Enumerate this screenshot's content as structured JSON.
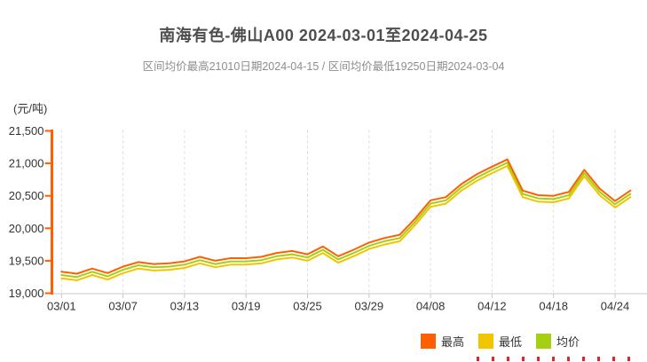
{
  "header": {
    "title": "南海有色-佛山A00 2024-03-01至2024-04-25",
    "subtitle": "区间均价最高21010日期2024-04-15 / 区间均价最低19250日期2024-03-04"
  },
  "y_axis": {
    "unit_label": "(元/吨)",
    "ticks": [
      "21,500",
      "21,000",
      "20,500",
      "20,000",
      "19,500",
      "19,000"
    ],
    "axis_color": "#ff5f00",
    "label_color": "#333333"
  },
  "x_axis": {
    "tick_labels": [
      "03/01",
      "03/07",
      "03/13",
      "03/19",
      "03/25",
      "03/29",
      "04/08",
      "04/12",
      "04/18",
      "04/24"
    ],
    "line_color": "#c8c8c8",
    "label_color": "#333333"
  },
  "legend": {
    "items": [
      {
        "label": "最高",
        "color": "#ff5f00"
      },
      {
        "label": "最低",
        "color": "#f1c500"
      },
      {
        "label": "均价",
        "color": "#a6ce13"
      }
    ]
  },
  "chart_data": {
    "type": "line",
    "title": "南海有色-佛山A00 2024-03-01至2024-04-25",
    "xlabel": "",
    "ylabel": "(元/吨)",
    "ylim": [
      19000,
      21500
    ],
    "grid": "vertical-dashed",
    "legend_position": "bottom-right",
    "x": [
      "03/01",
      "03/04",
      "03/05",
      "03/06",
      "03/07",
      "03/08",
      "03/11",
      "03/12",
      "03/13",
      "03/14",
      "03/15",
      "03/18",
      "03/19",
      "03/20",
      "03/21",
      "03/22",
      "03/25",
      "03/26",
      "03/27",
      "03/28",
      "03/29",
      "04/01",
      "04/02",
      "04/03",
      "04/08",
      "04/09",
      "04/10",
      "04/11",
      "04/12",
      "04/15",
      "04/16",
      "04/17",
      "04/18",
      "04/19",
      "04/22",
      "04/23",
      "04/24",
      "04/25"
    ],
    "series": [
      {
        "id": "max",
        "name": "最高",
        "color": "#ff5f00",
        "values": [
          19330,
          19300,
          19380,
          19310,
          19410,
          19480,
          19450,
          19460,
          19490,
          19560,
          19500,
          19540,
          19540,
          19560,
          19620,
          19650,
          19600,
          19720,
          19570,
          19670,
          19780,
          19850,
          19900,
          20150,
          20430,
          20480,
          20680,
          20830,
          20950,
          21060,
          20580,
          20510,
          20500,
          20560,
          20900,
          20610,
          20420,
          20580
        ]
      },
      {
        "id": "min",
        "name": "最低",
        "color": "#f1c500",
        "values": [
          19230,
          19200,
          19280,
          19210,
          19310,
          19380,
          19350,
          19360,
          19390,
          19460,
          19400,
          19440,
          19440,
          19460,
          19520,
          19550,
          19500,
          19620,
          19470,
          19570,
          19680,
          19750,
          19800,
          20050,
          20330,
          20380,
          20580,
          20730,
          20850,
          20960,
          20480,
          20410,
          20400,
          20460,
          20800,
          20510,
          20320,
          20480
        ]
      },
      {
        "id": "avg",
        "name": "均价",
        "color": "#a6ce13",
        "values": [
          19280,
          19250,
          19330,
          19260,
          19360,
          19430,
          19400,
          19410,
          19440,
          19510,
          19450,
          19490,
          19490,
          19510,
          19570,
          19600,
          19550,
          19670,
          19520,
          19620,
          19730,
          19800,
          19850,
          20100,
          20380,
          20430,
          20630,
          20780,
          20900,
          21010,
          20530,
          20460,
          20450,
          20510,
          20850,
          20560,
          20370,
          20530
        ]
      }
    ],
    "annotations": {
      "avg_max": {
        "value": 21010,
        "date": "2024-04-15"
      },
      "avg_min": {
        "value": 19250,
        "date": "2024-03-04"
      }
    }
  }
}
